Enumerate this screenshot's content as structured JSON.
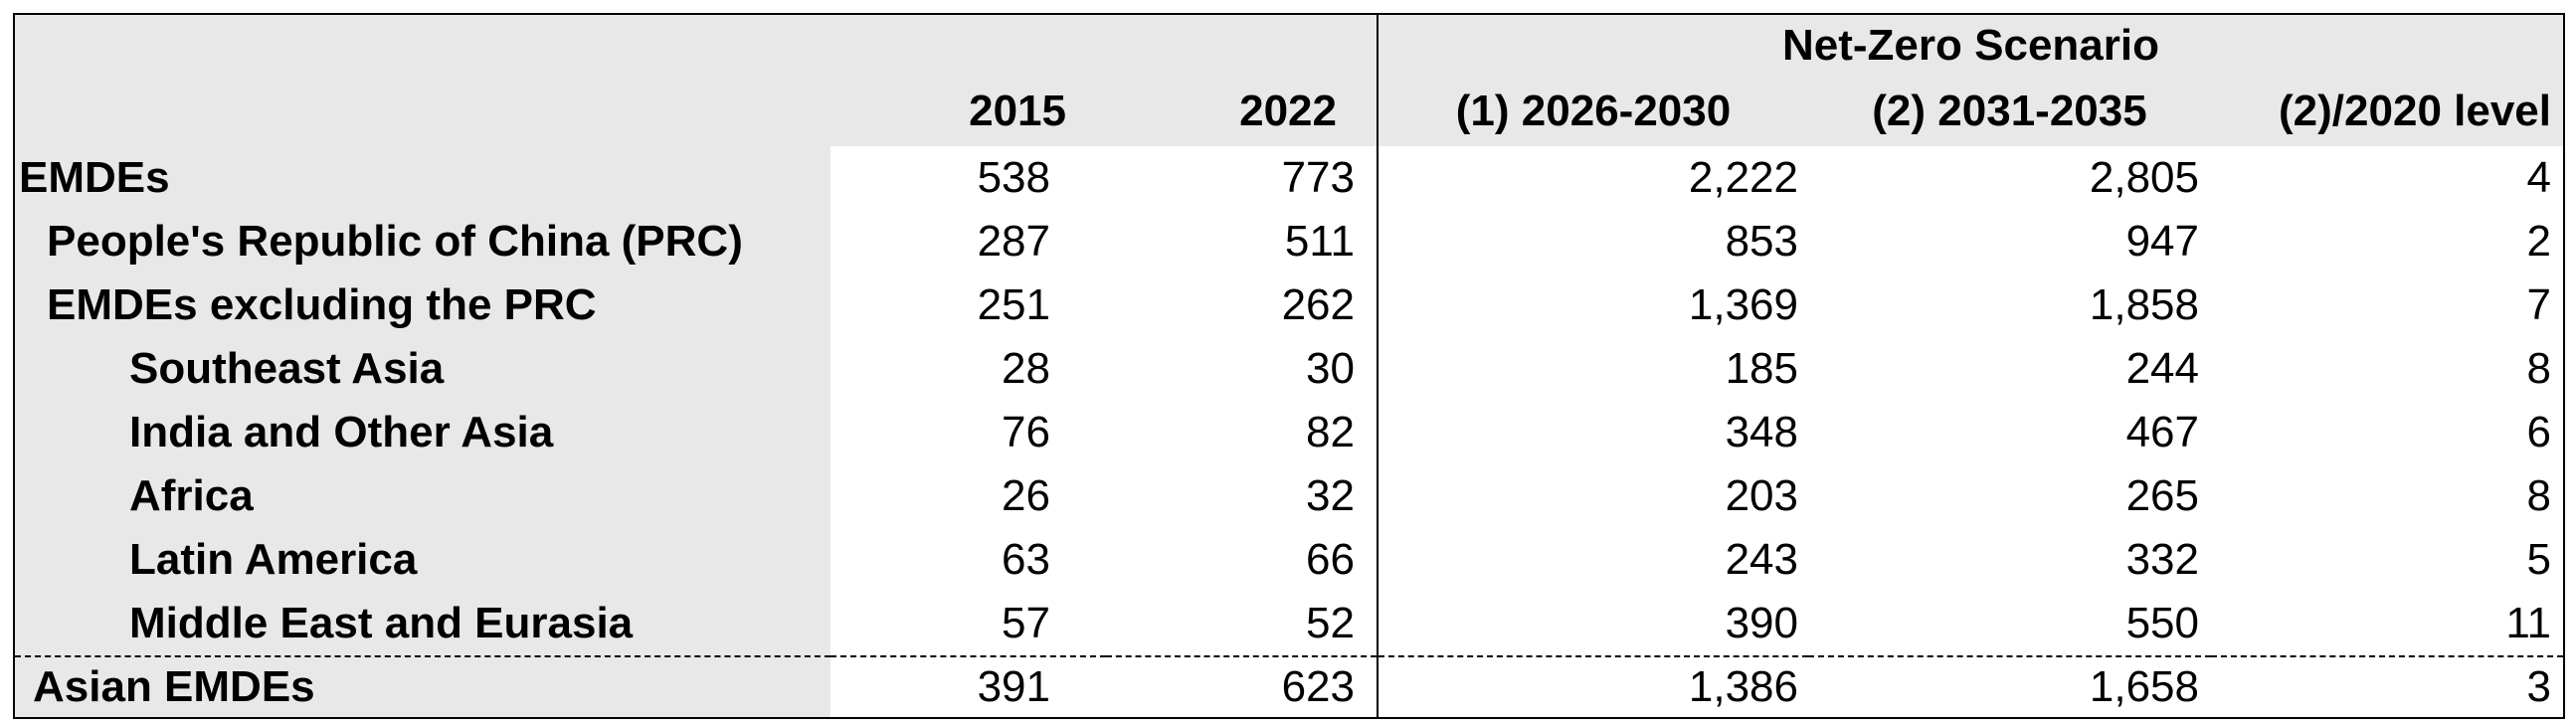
{
  "table": {
    "group_header": "Net-Zero Scenario",
    "columns": [
      "2015",
      "2022",
      "(1) 2026-2030",
      "(2) 2031-2035",
      "(2)/2020 level"
    ],
    "rows": [
      {
        "label": "EMDEs",
        "values": [
          "538",
          "773",
          "2,222",
          "2,805",
          "4"
        ]
      },
      {
        "label": "People's Republic of China (PRC)",
        "values": [
          "287",
          "511",
          "853",
          "947",
          "2"
        ]
      },
      {
        "label": "EMDEs excluding the PRC",
        "values": [
          "251",
          "262",
          "1,369",
          "1,858",
          "7"
        ]
      },
      {
        "label": "Southeast Asia",
        "values": [
          "28",
          "30",
          "185",
          "244",
          "8"
        ]
      },
      {
        "label": "India and Other Asia",
        "values": [
          "76",
          "82",
          "348",
          "467",
          "6"
        ]
      },
      {
        "label": "Africa",
        "values": [
          "26",
          "32",
          "203",
          "265",
          "8"
        ]
      },
      {
        "label": "Latin America",
        "values": [
          "63",
          "66",
          "243",
          "332",
          "5"
        ]
      },
      {
        "label": "Middle East and Eurasia",
        "values": [
          "57",
          "52",
          "390",
          "550",
          "11"
        ]
      },
      {
        "label": "Asian EMDEs",
        "values": [
          "391",
          "623",
          "1,386",
          "1,658",
          "3"
        ]
      }
    ]
  }
}
